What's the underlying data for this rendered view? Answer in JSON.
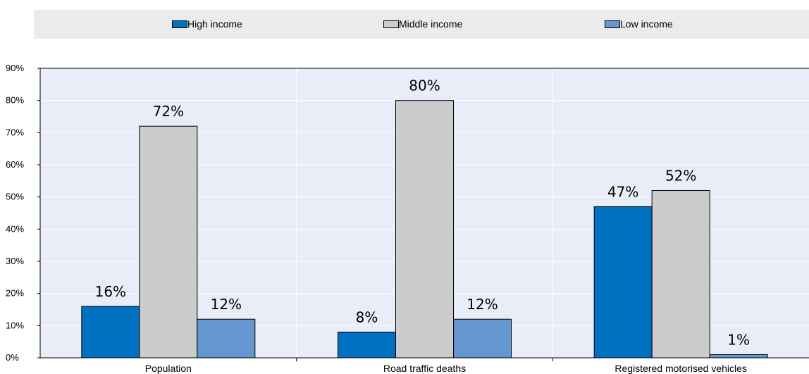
{
  "chart_data": {
    "type": "bar",
    "categories": [
      "Population",
      "Road traffic deaths",
      "Registered motorised vehicles"
    ],
    "series": [
      {
        "name": "High income",
        "values": [
          16,
          8,
          47
        ],
        "color": "#0070c0"
      },
      {
        "name": "Middle income",
        "values": [
          72,
          80,
          52
        ],
        "color": "#cccccc"
      },
      {
        "name": "Low income",
        "values": [
          12,
          12,
          1
        ],
        "color": "#6497cf"
      }
    ],
    "data_labels": [
      [
        "16%",
        "8%",
        "47%"
      ],
      [
        "72%",
        "80%",
        "52%"
      ],
      [
        "12%",
        "12%",
        "1%"
      ]
    ],
    "y_ticks": [
      "0%",
      "10%",
      "20%",
      "30%",
      "40%",
      "50%",
      "60%",
      "70%",
      "80%",
      "90%"
    ],
    "ylim": [
      0,
      90
    ],
    "title": "",
    "xlabel": "",
    "ylabel": "",
    "legend_position": "top",
    "grid": true,
    "plot_background": "#e9edf7",
    "grid_color": "#ffffff"
  }
}
